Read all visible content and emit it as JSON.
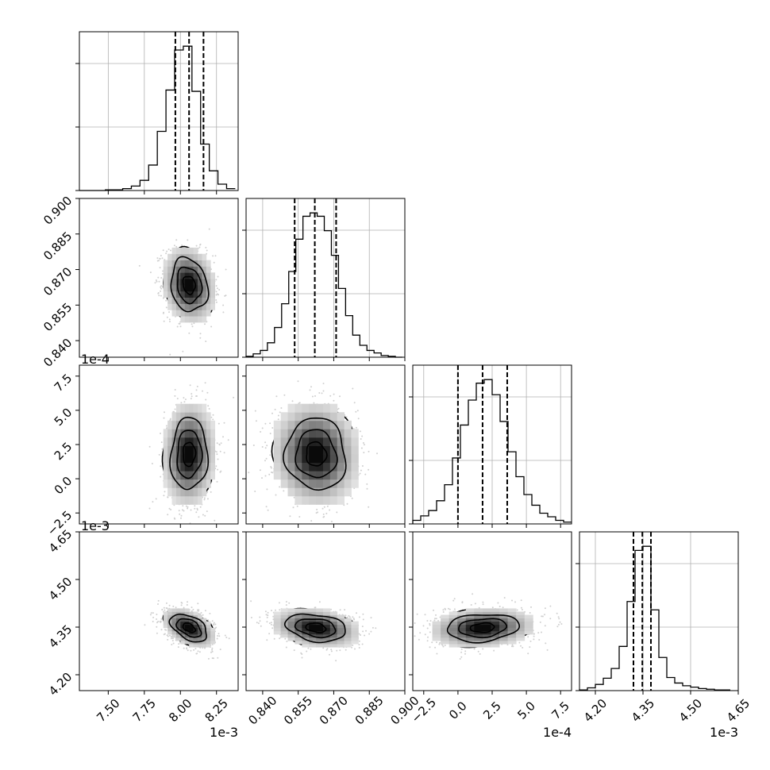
{
  "chart_data": {
    "type": "corner",
    "parameters": [
      {
        "range": [
          7.3,
          8.4
        ],
        "ticks": [
          7.5,
          7.75,
          8.0,
          8.25
        ],
        "tick_labels": [
          "7.50",
          "7.75",
          "8.00",
          "8.25"
        ],
        "offset_label": "1e-3",
        "quantiles": [
          7.965,
          8.06,
          8.16
        ],
        "hist": {
          "edges": [
            7.3,
            7.36,
            7.42,
            7.48,
            7.54,
            7.6,
            7.66,
            7.72,
            7.78,
            7.84,
            7.9,
            7.96,
            8.02,
            8.08,
            8.14,
            8.2,
            8.26,
            8.32,
            8.38
          ],
          "counts": [
            0,
            0,
            0,
            1,
            1,
            3,
            7,
            16,
            40,
            93,
            158,
            221,
            227,
            156,
            73,
            31,
            10,
            3
          ]
        }
      },
      {
        "range": [
          0.833,
          0.9
        ],
        "ticks": [
          0.84,
          0.855,
          0.87,
          0.885,
          0.9
        ],
        "tick_labels": [
          "0.840",
          "0.855",
          "0.870",
          "0.885",
          "0.900"
        ],
        "offset_label": "",
        "quantiles": [
          0.8535,
          0.862,
          0.871
        ],
        "hist": {
          "edges": [
            0.833,
            0.836,
            0.839,
            0.842,
            0.845,
            0.848,
            0.851,
            0.854,
            0.857,
            0.86,
            0.863,
            0.866,
            0.869,
            0.872,
            0.875,
            0.878,
            0.881,
            0.884,
            0.887,
            0.89,
            0.893,
            0.896,
            0.899
          ],
          "counts": [
            1,
            4,
            8,
            17,
            35,
            63,
            101,
            139,
            166,
            170,
            166,
            149,
            120,
            81,
            49,
            26,
            14,
            8,
            5,
            2,
            1,
            0
          ]
        }
      },
      {
        "range": [
          -3.3,
          8.3
        ],
        "ticks": [
          -2.5,
          0.0,
          2.5,
          5.0,
          7.5
        ],
        "tick_labels": [
          "−2.5",
          "0.0",
          "2.5",
          "5.0",
          "7.5"
        ],
        "offset_label": "1e-4",
        "quantiles": [
          0.0,
          1.8,
          3.6
        ],
        "hist": {
          "edges": [
            -3.3,
            -2.72,
            -2.14,
            -1.56,
            -0.98,
            -0.4,
            0.18,
            0.76,
            1.34,
            1.92,
            2.5,
            3.08,
            3.66,
            4.24,
            4.82,
            5.4,
            5.98,
            6.56,
            7.14,
            7.72,
            8.3
          ],
          "counts": [
            4,
            9,
            15,
            26,
            44,
            74,
            111,
            139,
            158,
            162,
            145,
            115,
            81,
            53,
            33,
            21,
            12,
            8,
            4,
            2
          ]
        }
      },
      {
        "range": [
          4.15,
          4.65
        ],
        "ticks": [
          4.2,
          4.35,
          4.5,
          4.65
        ],
        "tick_labels": [
          "4.20",
          "4.35",
          "4.50",
          "4.65"
        ],
        "offset_label": "1e-3",
        "quantiles": [
          4.32,
          4.348,
          4.375
        ],
        "hist": {
          "edges": [
            4.15,
            4.175,
            4.2,
            4.225,
            4.25,
            4.275,
            4.3,
            4.325,
            4.35,
            4.375,
            4.4,
            4.425,
            4.45,
            4.475,
            4.5,
            4.525,
            4.55,
            4.575,
            4.6,
            4.625
          ],
          "counts": [
            1,
            4,
            9,
            18,
            32,
            64,
            129,
            203,
            209,
            117,
            48,
            19,
            11,
            7,
            5,
            3,
            2,
            1,
            1
          ]
        }
      }
    ],
    "pairs": [
      {
        "x": 0,
        "y": 1,
        "center": [
          8.06,
          0.8635
        ],
        "sigma": [
          0.085,
          0.0075
        ],
        "rho": -0.15
      },
      {
        "x": 0,
        "y": 2,
        "center": [
          8.06,
          1.8
        ],
        "sigma": [
          0.085,
          1.75
        ],
        "rho": 0.05
      },
      {
        "x": 1,
        "y": 2,
        "center": [
          0.8625,
          1.8
        ],
        "sigma": [
          0.0085,
          1.75
        ],
        "rho": -0.05
      },
      {
        "x": 0,
        "y": 3,
        "center": [
          8.06,
          4.348
        ],
        "sigma": [
          0.085,
          0.029
        ],
        "rho": -0.45
      },
      {
        "x": 1,
        "y": 3,
        "center": [
          0.8625,
          4.348
        ],
        "sigma": [
          0.0085,
          0.029
        ],
        "rho": -0.25
      },
      {
        "x": 2,
        "y": 3,
        "center": [
          1.8,
          4.348
        ],
        "sigma": [
          1.75,
          0.029
        ],
        "rho": 0.15
      }
    ],
    "quantile_levels": [
      0.16,
      0.5,
      0.84
    ],
    "contour_levels_sigma": [
      0.5,
      1.0,
      1.5,
      2.0
    ],
    "grid": true
  },
  "colors": {
    "hist": "#000000",
    "points": "#aaaaaa",
    "contour": "#000000",
    "grid": "#b0b0b0"
  }
}
